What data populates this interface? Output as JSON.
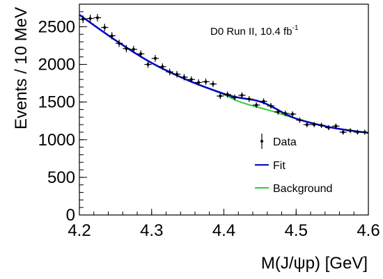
{
  "chart_data": {
    "type": "scatter",
    "title": "",
    "annotation": "D0 Run II, 10.4 fb",
    "annotation_sup": "-1",
    "xlabel": "M(J/ψp) [GeV]",
    "ylabel": "Events / 10 MeV",
    "xlim": [
      4.2,
      4.6
    ],
    "ylim": [
      0,
      2800
    ],
    "xticks": [
      "4.2",
      "4.3",
      "4.4",
      "4.5",
      "4.6"
    ],
    "yticks": [
      "0",
      "500",
      "1000",
      "1500",
      "2000",
      "2500"
    ],
    "grid": false,
    "legend_position": "right",
    "colors": {
      "data": "#000000",
      "fit": "#0000cc",
      "background": "#33cc33"
    },
    "series": [
      {
        "name": "Data",
        "kind": "points-with-errors",
        "x": [
          4.205,
          4.215,
          4.225,
          4.235,
          4.245,
          4.255,
          4.265,
          4.275,
          4.285,
          4.295,
          4.305,
          4.315,
          4.325,
          4.335,
          4.345,
          4.355,
          4.365,
          4.375,
          4.385,
          4.395,
          4.405,
          4.415,
          4.425,
          4.435,
          4.445,
          4.455,
          4.465,
          4.475,
          4.485,
          4.495,
          4.505,
          4.515,
          4.525,
          4.535,
          4.545,
          4.555,
          4.565,
          4.575,
          4.585,
          4.595
        ],
        "y": [
          2600,
          2610,
          2620,
          2490,
          2380,
          2280,
          2210,
          2200,
          2140,
          2000,
          2080,
          1970,
          1900,
          1870,
          1830,
          1800,
          1760,
          1770,
          1740,
          1580,
          1600,
          1560,
          1590,
          1540,
          1460,
          1510,
          1450,
          1370,
          1350,
          1340,
          1260,
          1200,
          1200,
          1190,
          1160,
          1180,
          1100,
          1120,
          1100,
          1100
        ],
        "yerr": [
          50,
          50,
          50,
          50,
          48,
          48,
          47,
          47,
          46,
          45,
          45,
          44,
          44,
          43,
          43,
          42,
          42,
          42,
          42,
          40,
          40,
          40,
          40,
          39,
          38,
          39,
          38,
          37,
          37,
          37,
          36,
          35,
          35,
          35,
          34,
          34,
          33,
          33,
          33,
          33
        ]
      },
      {
        "name": "Fit",
        "kind": "line",
        "x": [
          4.2,
          4.25,
          4.3,
          4.35,
          4.4,
          4.42,
          4.44,
          4.455,
          4.47,
          4.5,
          4.55,
          4.6
        ],
        "y": [
          2660,
          2320,
          2020,
          1790,
          1610,
          1560,
          1530,
          1490,
          1420,
          1280,
          1160,
          1090
        ]
      },
      {
        "name": "Background",
        "kind": "line",
        "x": [
          4.2,
          4.25,
          4.3,
          4.35,
          4.4,
          4.42,
          4.44,
          4.455,
          4.47,
          4.5,
          4.55,
          4.6
        ],
        "y": [
          2660,
          2320,
          2020,
          1790,
          1600,
          1510,
          1450,
          1410,
          1370,
          1280,
          1160,
          1090
        ]
      }
    ]
  }
}
